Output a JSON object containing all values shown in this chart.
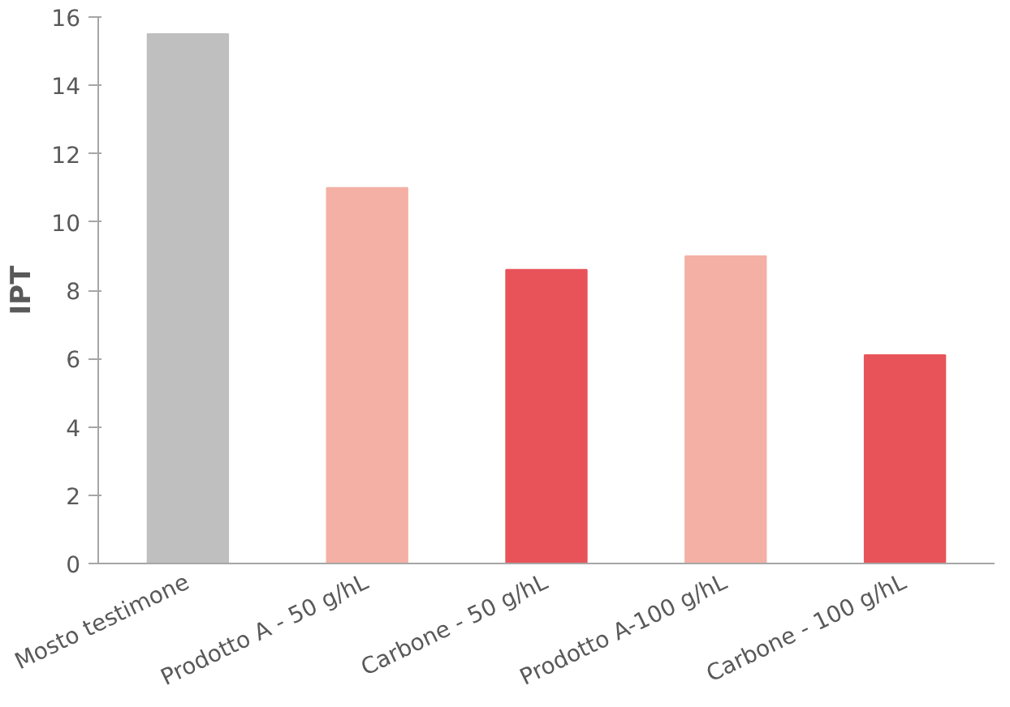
{
  "chart_data": {
    "type": "bar",
    "ylabel": "IPT",
    "categories": [
      "Mosto testimone",
      "Prodotto A - 50 g/hL",
      "Carbone - 50 g/hL",
      "Prodotto A-100 g/hL",
      "Carbone - 100 g/hL"
    ],
    "values": [
      15.5,
      11.0,
      8.6,
      9.0,
      6.1
    ],
    "colors": [
      "#bfbfbf",
      "#f4b0a5",
      "#e8535a",
      "#f4b0a5",
      "#e8535a"
    ],
    "ylim": [
      0,
      16
    ],
    "yticks": [
      0,
      2,
      4,
      6,
      8,
      10,
      12,
      14,
      16
    ],
    "grid": false
  }
}
